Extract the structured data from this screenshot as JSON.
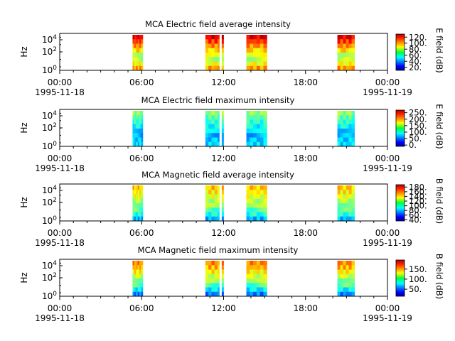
{
  "x_ticks": [
    {
      "time": "00:00",
      "date": "1995-11-18"
    },
    {
      "time": "06:00",
      "date": ""
    },
    {
      "time": "12:00",
      "date": ""
    },
    {
      "time": "18:00",
      "date": ""
    },
    {
      "time": "00:00",
      "date": "1995-11-19"
    }
  ],
  "chart_data": [
    {
      "type": "heatmap",
      "title": "MCA  Electric field average intensity",
      "ylabel": "Hz",
      "y_scale": "log",
      "y_ticks": [
        "10^0",
        "10^2",
        "10^4"
      ],
      "colorbar_label": "E field (dB)",
      "colorbar_ticks": [
        "20.",
        "40.",
        "60.",
        "80.",
        "100.",
        "120."
      ],
      "colorbar_range": [
        10,
        130
      ],
      "x_range": [
        "1995-11-18 00:00",
        "1995-11-19 00:00"
      ],
      "data_blocks": [
        {
          "start": "05:20",
          "end": "06:05"
        },
        {
          "start": "10:40",
          "end": "12:00"
        },
        {
          "start": "13:40",
          "end": "15:10"
        },
        {
          "start": "20:20",
          "end": "21:35"
        }
      ]
    },
    {
      "type": "heatmap",
      "title": "MCA  Electric field maximum intensity",
      "ylabel": "Hz",
      "y_scale": "log",
      "y_ticks": [
        "10^0",
        "10^2",
        "10^4"
      ],
      "colorbar_label": "E field (dB)",
      "colorbar_ticks": [
        "0.",
        "50.",
        "100.",
        "150.",
        "200.",
        "250."
      ],
      "colorbar_range": [
        -10,
        270
      ],
      "x_range": [
        "1995-11-18 00:00",
        "1995-11-19 00:00"
      ],
      "data_blocks": [
        {
          "start": "05:20",
          "end": "06:05"
        },
        {
          "start": "10:40",
          "end": "12:00"
        },
        {
          "start": "13:40",
          "end": "15:10"
        },
        {
          "start": "20:20",
          "end": "21:35"
        }
      ]
    },
    {
      "type": "heatmap",
      "title": "MCA  Magnetic field average intensity",
      "ylabel": "Hz",
      "y_scale": "log",
      "y_ticks": [
        "10^0",
        "10^2",
        "10^4"
      ],
      "colorbar_label": "B field (dB)",
      "colorbar_ticks": [
        "40.",
        "60.",
        "80.",
        "100.",
        "120.",
        "140.",
        "160.",
        "180."
      ],
      "colorbar_range": [
        35,
        190
      ],
      "x_range": [
        "1995-11-18 00:00",
        "1995-11-19 00:00"
      ],
      "data_blocks": [
        {
          "start": "05:20",
          "end": "06:05"
        },
        {
          "start": "10:40",
          "end": "12:00"
        },
        {
          "start": "13:40",
          "end": "15:10"
        },
        {
          "start": "20:20",
          "end": "21:35"
        }
      ]
    },
    {
      "type": "heatmap",
      "title": "MCA  Magnetic field maximum intensity",
      "ylabel": "Hz",
      "y_scale": "log",
      "y_ticks": [
        "10^0",
        "10^2",
        "10^4"
      ],
      "colorbar_label": "B field (dB)",
      "colorbar_ticks": [
        "50.",
        "100.",
        "150."
      ],
      "colorbar_range": [
        15,
        195
      ],
      "x_range": [
        "1995-11-18 00:00",
        "1995-11-19 00:00"
      ],
      "data_blocks": [
        {
          "start": "05:20",
          "end": "06:05"
        },
        {
          "start": "10:40",
          "end": "12:00"
        },
        {
          "start": "13:40",
          "end": "15:10"
        },
        {
          "start": "20:20",
          "end": "21:35"
        }
      ]
    }
  ]
}
